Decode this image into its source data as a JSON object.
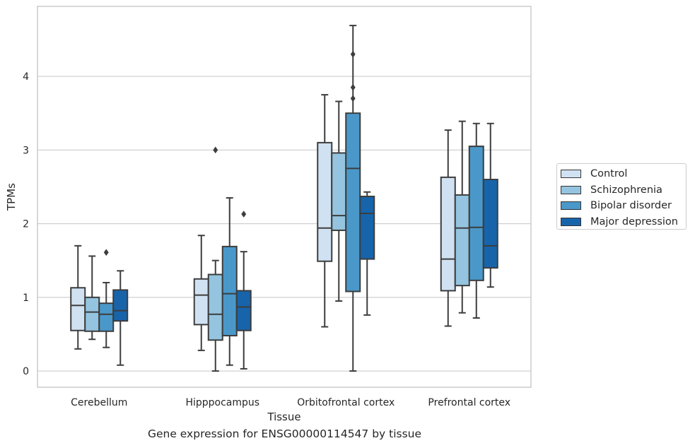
{
  "caption": "Gene expression for ENSG00000114547 by tissue",
  "chart_data": {
    "type": "box",
    "title": "",
    "xlabel": "Tissue",
    "ylabel": "TPMs",
    "ylim": [
      -0.22,
      4.95
    ],
    "yticks": [
      0,
      1,
      2,
      3,
      4
    ],
    "grid": "horizontal",
    "legend_position": "right",
    "categories": [
      "Cerebellum",
      "Hipppocampus",
      "Orbitofrontal cortex",
      "Prefrontal cortex"
    ],
    "series": [
      {
        "name": "Control",
        "color": "#d0e1f2",
        "boxes": [
          {
            "whislo": 0.3,
            "q1": 0.55,
            "med": 0.89,
            "q3": 1.13,
            "whishi": 1.7,
            "fliers": []
          },
          {
            "whislo": 0.28,
            "q1": 0.63,
            "med": 1.03,
            "q3": 1.25,
            "whishi": 1.84,
            "fliers": []
          },
          {
            "whislo": 0.6,
            "q1": 1.49,
            "med": 1.94,
            "q3": 3.1,
            "whishi": 3.75,
            "fliers": []
          },
          {
            "whislo": 0.61,
            "q1": 1.09,
            "med": 1.52,
            "q3": 2.63,
            "whishi": 3.27,
            "fliers": []
          }
        ]
      },
      {
        "name": "Schizophrenia",
        "color": "#94c4df",
        "boxes": [
          {
            "whislo": 0.43,
            "q1": 0.54,
            "med": 0.8,
            "q3": 1.0,
            "whishi": 1.56,
            "fliers": []
          },
          {
            "whislo": 0.0,
            "q1": 0.42,
            "med": 0.77,
            "q3": 1.31,
            "whishi": 1.5,
            "fliers": [
              3.0
            ]
          },
          {
            "whislo": 0.95,
            "q1": 1.91,
            "med": 2.11,
            "q3": 2.96,
            "whishi": 3.66,
            "fliers": []
          },
          {
            "whislo": 0.79,
            "q1": 1.16,
            "med": 1.94,
            "q3": 2.39,
            "whishi": 3.39,
            "fliers": []
          }
        ]
      },
      {
        "name": "Bipolar disorder",
        "color": "#4a98c9",
        "boxes": [
          {
            "whislo": 0.32,
            "q1": 0.54,
            "med": 0.77,
            "q3": 0.92,
            "whishi": 1.2,
            "fliers": [
              1.61
            ]
          },
          {
            "whislo": 0.08,
            "q1": 0.48,
            "med": 1.05,
            "q3": 1.69,
            "whishi": 2.35,
            "fliers": []
          },
          {
            "whislo": 0.0,
            "q1": 1.08,
            "med": 2.75,
            "q3": 3.5,
            "whishi": 4.69,
            "fliers": [
              3.7,
              3.85,
              4.3
            ]
          },
          {
            "whislo": 0.72,
            "q1": 1.23,
            "med": 1.95,
            "q3": 3.05,
            "whishi": 3.36,
            "fliers": []
          }
        ]
      },
      {
        "name": "Major depression",
        "color": "#1764ab",
        "boxes": [
          {
            "whislo": 0.08,
            "q1": 0.68,
            "med": 0.82,
            "q3": 1.1,
            "whishi": 1.36,
            "fliers": []
          },
          {
            "whislo": 0.03,
            "q1": 0.55,
            "med": 0.87,
            "q3": 1.09,
            "whishi": 1.62,
            "fliers": [
              2.13
            ]
          },
          {
            "whislo": 0.76,
            "q1": 1.52,
            "med": 2.14,
            "q3": 2.37,
            "whishi": 2.43,
            "fliers": []
          },
          {
            "whislo": 1.14,
            "q1": 1.4,
            "med": 1.7,
            "q3": 2.6,
            "whishi": 3.36,
            "fliers": []
          }
        ]
      }
    ]
  }
}
